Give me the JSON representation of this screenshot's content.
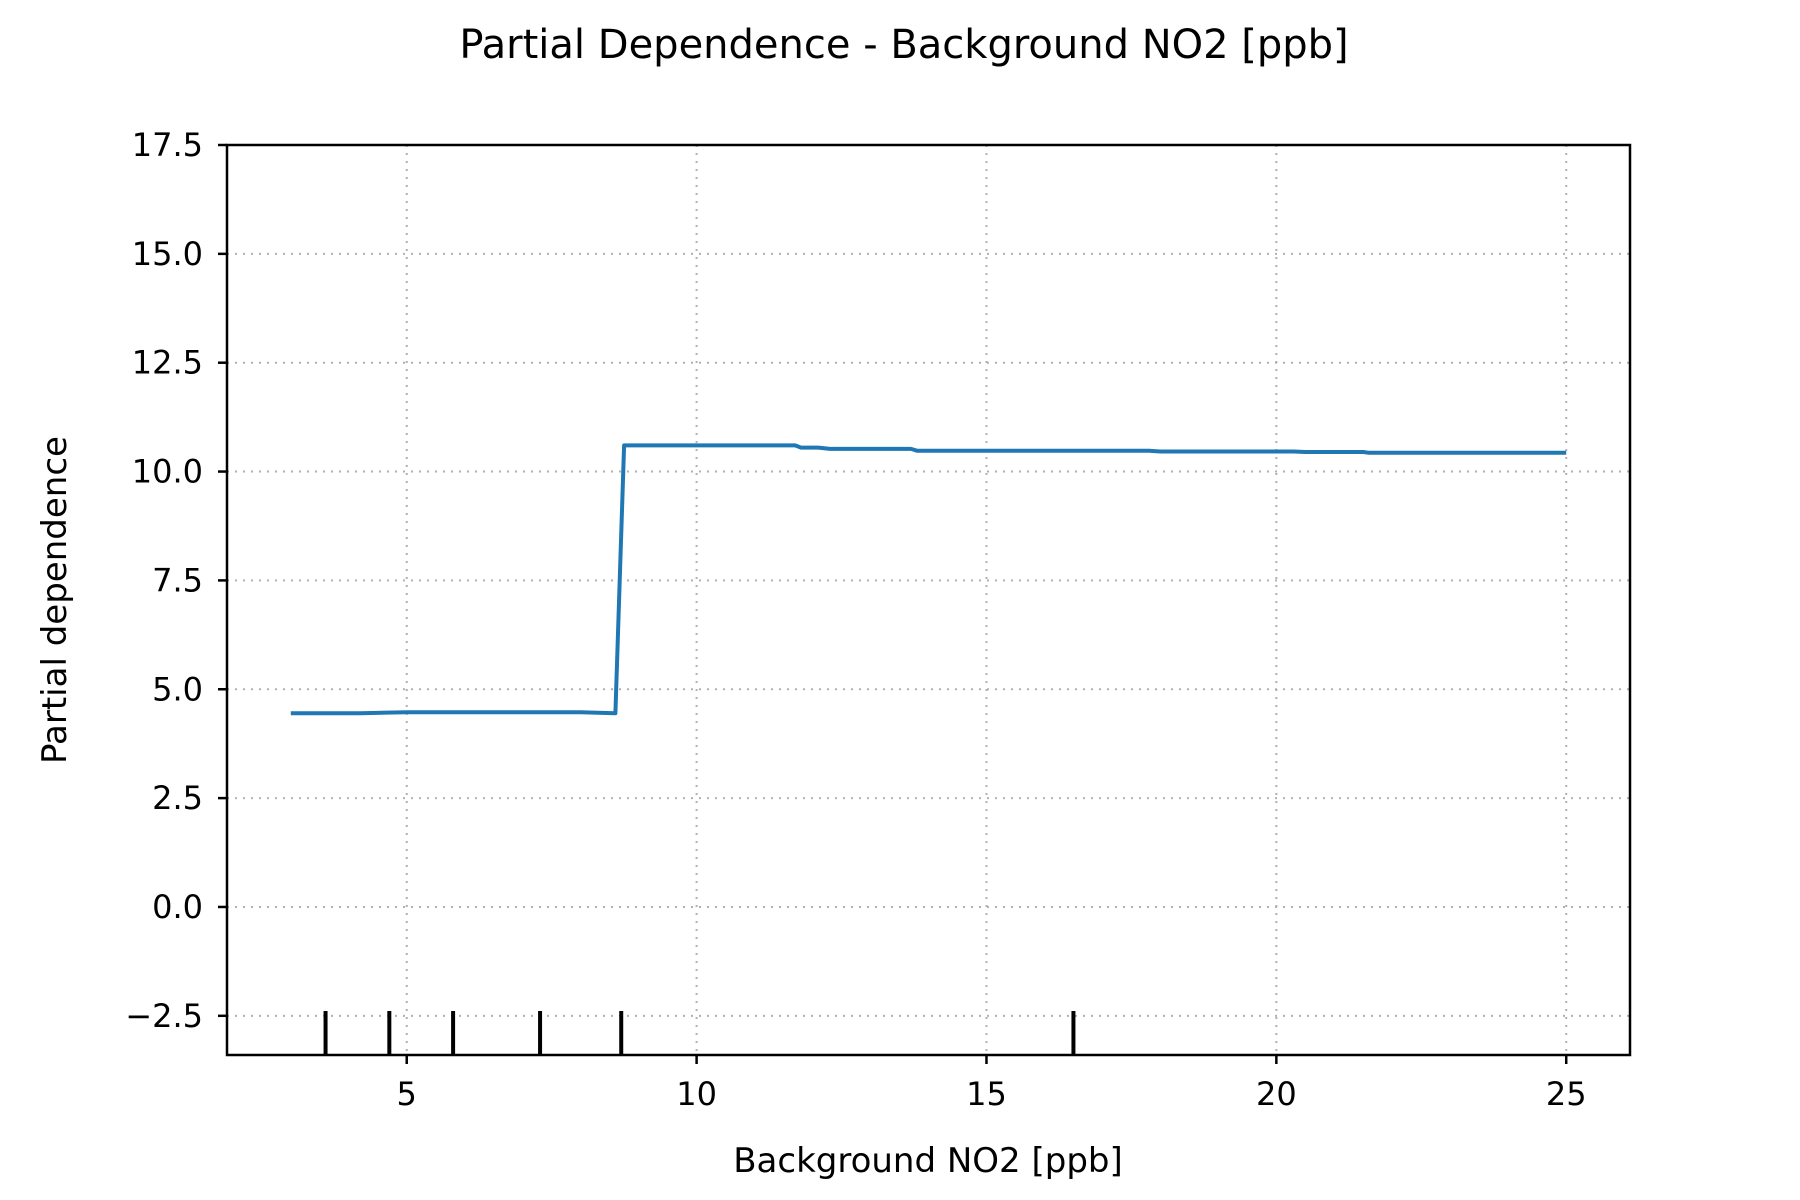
{
  "chart_data": {
    "type": "line",
    "title": "Partial Dependence - Background NO2 [ppb]",
    "xlabel": "Background NO2 [ppb]",
    "ylabel": "Partial dependence",
    "xlim": [
      1.9,
      26.1
    ],
    "ylim": [
      -3.4,
      17.5
    ],
    "xticks": [
      5,
      10,
      15,
      20,
      25
    ],
    "xtick_labels": [
      "5",
      "10",
      "15",
      "20",
      "25"
    ],
    "yticks": [
      -2.5,
      0.0,
      2.5,
      5.0,
      7.5,
      10.0,
      12.5,
      15.0,
      17.5
    ],
    "ytick_labels": [
      "−2.5",
      "0.0",
      "2.5",
      "5.0",
      "7.5",
      "10.0",
      "12.5",
      "15.0",
      "17.5"
    ],
    "grid": true,
    "series": [
      {
        "color": "#1f77b4",
        "x": [
          3.0,
          4.2,
          5.0,
          6.0,
          7.0,
          8.0,
          8.6,
          8.75,
          9.5,
          10.5,
          11.0,
          11.7,
          11.8,
          12.1,
          12.3,
          13.0,
          13.7,
          13.8,
          14.5,
          15.5,
          17.8,
          18.0,
          20.3,
          20.5,
          21.5,
          21.6,
          23.0,
          25.0
        ],
        "y": [
          4.45,
          4.45,
          4.47,
          4.47,
          4.47,
          4.47,
          4.45,
          10.6,
          10.6,
          10.6,
          10.6,
          10.6,
          10.55,
          10.55,
          10.52,
          10.52,
          10.52,
          10.48,
          10.48,
          10.48,
          10.48,
          10.46,
          10.46,
          10.45,
          10.45,
          10.43,
          10.43,
          10.43
        ]
      }
    ],
    "rug_x": [
      3.6,
      4.7,
      5.8,
      7.3,
      8.7,
      16.5
    ]
  }
}
